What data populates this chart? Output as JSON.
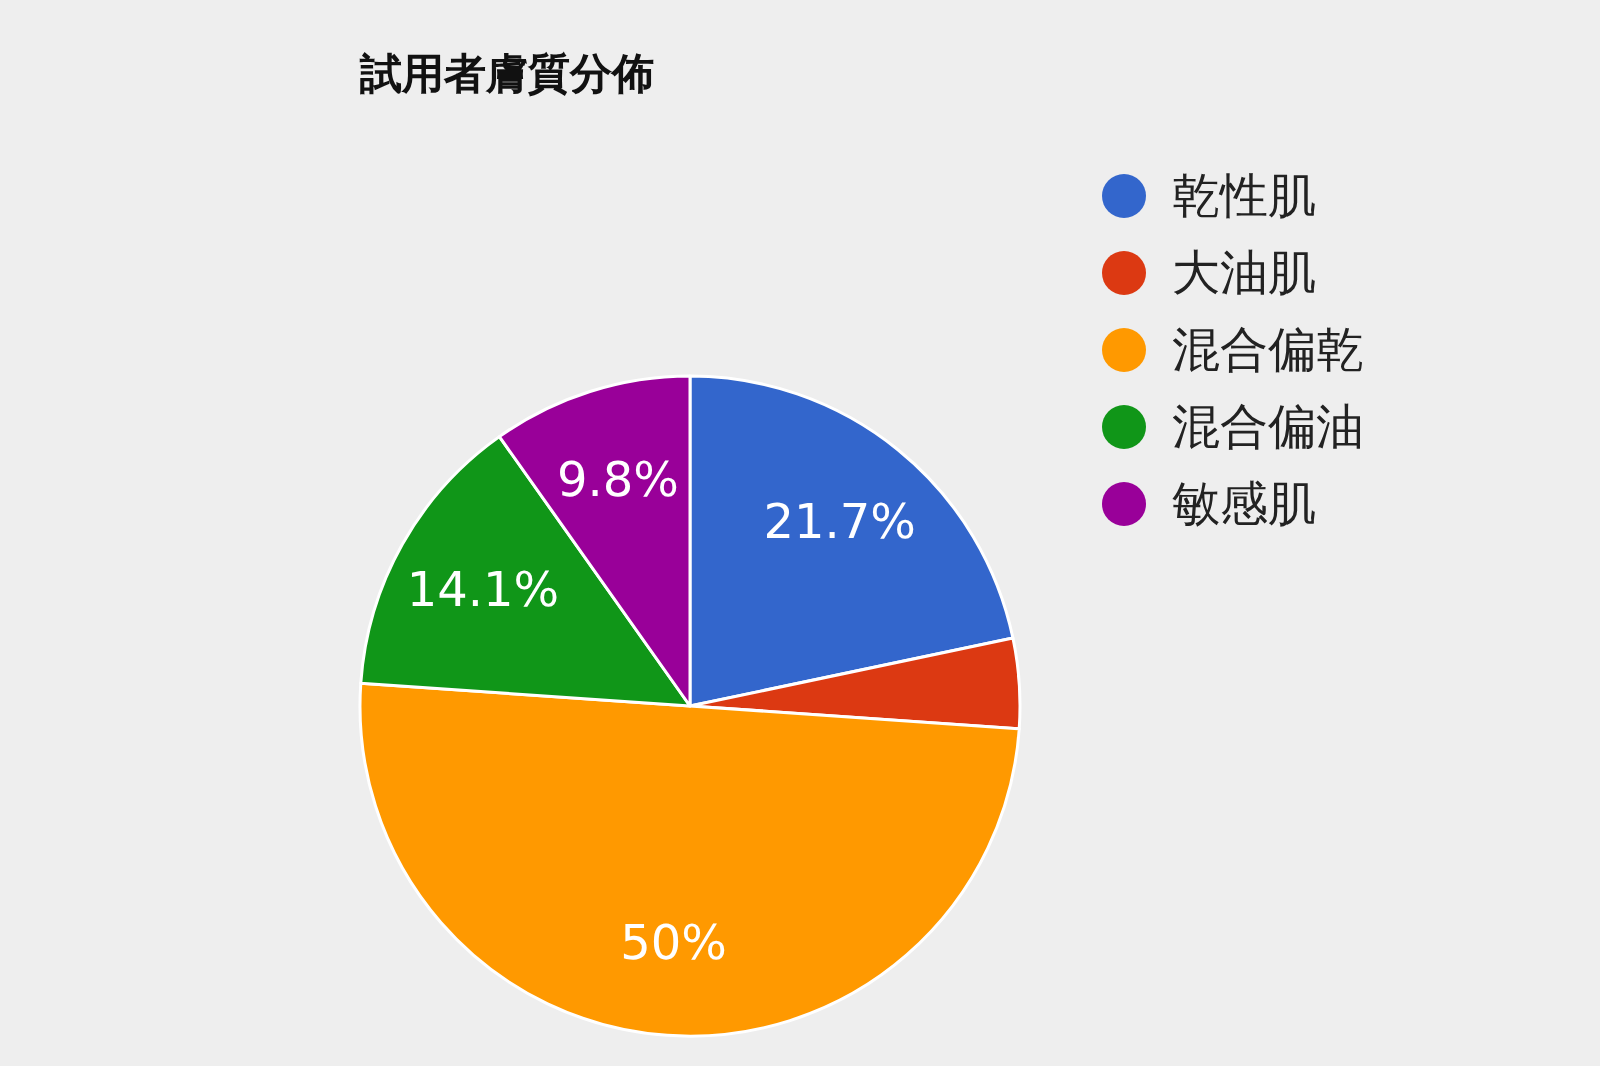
{
  "chart_data": {
    "type": "pie",
    "title": "試用者膚質分佈",
    "categories": [
      "乾性肌",
      "大油肌",
      "混合偏乾",
      "混合偏油",
      "敏感肌"
    ],
    "values": [
      21.7,
      4.4,
      50,
      14.1,
      9.8
    ],
    "colors": [
      "#3366cc",
      "#dc3912",
      "#ff9900",
      "#109618",
      "#990099"
    ],
    "value_labels": [
      "21.7%",
      null,
      "50%",
      "14.1%",
      "9.8%"
    ],
    "legend": "right"
  }
}
